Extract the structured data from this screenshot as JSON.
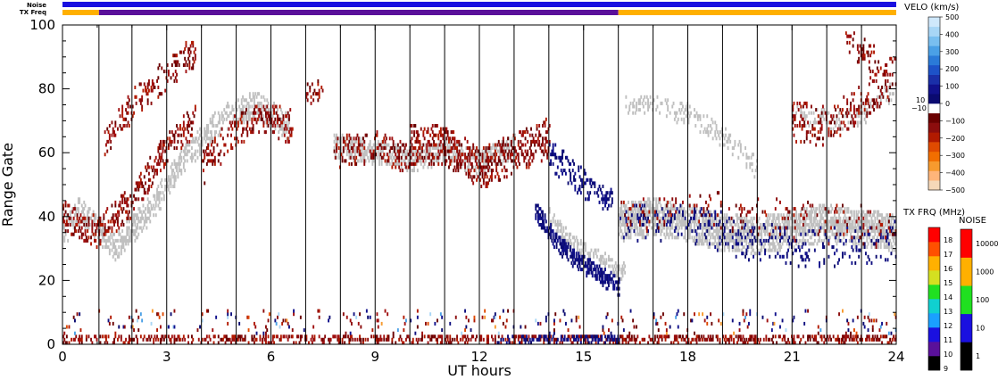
{
  "chart_data": {
    "type": "heatmap",
    "title": "",
    "xlabel": "UT hours",
    "ylabel": "Range Gate",
    "xlim": [
      0,
      24
    ],
    "ylim": [
      0,
      100
    ],
    "x_ticks": [
      0,
      3,
      6,
      9,
      12,
      15,
      18,
      21,
      24
    ],
    "y_ticks": [
      0,
      20,
      40,
      60,
      80,
      100
    ],
    "scan_boundaries_hours": [
      1.05,
      2.0,
      3.0,
      4.0,
      5.0,
      6.0,
      7.0,
      8.0,
      9.0,
      10.0,
      11.0,
      12.0,
      13.0,
      14.0,
      15.0,
      16.0,
      17.0,
      18.0,
      19.0,
      20.0,
      21.0,
      22.0,
      23.0
    ],
    "ground_scatter_color": "#c0c0c0",
    "status_bars": {
      "noise_label": "Noise",
      "txfreq_label": "TX Freq",
      "noise_segments": [
        {
          "start": 0,
          "end": 24,
          "level": "10",
          "color": "#1a10e0"
        }
      ],
      "txfreq_segments": [
        {
          "start": 0,
          "end": 1.05,
          "band": "15-16 MHz",
          "color": "#ffb000"
        },
        {
          "start": 1.05,
          "end": 16.0,
          "band": "10-11 MHz",
          "color": "#5a109a"
        },
        {
          "start": 16.0,
          "end": 24,
          "band": "15-16 MHz",
          "color": "#ffb000"
        }
      ]
    },
    "velocity_scale": {
      "title": "VELO (km/s)",
      "ticks": [
        "500",
        "400",
        "300",
        "200",
        "100",
        "0",
        "−100",
        "−200",
        "−300",
        "−400",
        "−500"
      ],
      "near_zero_labels": [
        "10",
        "−10"
      ],
      "colors": [
        "#f6d8b8",
        "#ffb57a",
        "#f79a2e",
        "#f26e00",
        "#e04a00",
        "#b21a00",
        "#8c0d0d",
        "#6a0000",
        "#ffffff",
        "#0a0a70",
        "#11118c",
        "#1a2fa8",
        "#1d52c8",
        "#2a7ad8",
        "#4aa0e6",
        "#79bff0",
        "#a8d6f6",
        "#cfe8fb"
      ]
    },
    "txfreq_scale": {
      "title": "TX FRQ (MHz)",
      "ticks": [
        "9",
        "10",
        "11",
        "12",
        "13",
        "14",
        "15",
        "16",
        "17",
        "18"
      ],
      "colors": [
        "#000000",
        "#5a109a",
        "#1a10e0",
        "#1aa0ff",
        "#10d0d0",
        "#20e020",
        "#d4e020",
        "#ffb000",
        "#ff5000",
        "#ff0000"
      ]
    },
    "noise_scale": {
      "title": "NOISE",
      "ticks": [
        "1",
        "10",
        "100",
        "1000",
        "10000"
      ],
      "colors": [
        "#000000",
        "#1a10e0",
        "#20e020",
        "#ffb000",
        "#ff0000"
      ]
    },
    "features": [
      {
        "name": "ground scatter band",
        "type": "band",
        "x": [
          0,
          0.5,
          1.5,
          2.5,
          3.5,
          4.5,
          5.5,
          6.5
        ],
        "y": [
          35,
          42,
          30,
          42,
          58,
          70,
          75,
          68
        ],
        "width": 8,
        "color": "ground",
        "density": 0.55
      },
      {
        "name": "ground scatter band",
        "type": "band",
        "x": [
          7.8,
          9.0,
          10.0,
          11.0,
          12.0,
          13.0
        ],
        "y": [
          62,
          60,
          58,
          60,
          57,
          62
        ],
        "width": 7,
        "color": "ground",
        "density": 0.6
      },
      {
        "name": "ground scatter band",
        "type": "band",
        "x": [
          16.0,
          17.0,
          18.0,
          19.0,
          20.0,
          21.0,
          22.0,
          23.0,
          24.0
        ],
        "y": [
          38,
          40,
          38,
          35,
          34,
          36,
          38,
          36,
          35
        ],
        "width": 11,
        "color": "ground",
        "density": 0.75
      },
      {
        "name": "ground scatter band",
        "type": "band",
        "x": [
          14.0,
          14.6,
          15.2,
          15.8,
          16.2
        ],
        "y": [
          40,
          32,
          27,
          24,
          22
        ],
        "width": 6,
        "color": "ground",
        "density": 0.5
      },
      {
        "name": "ground scatter band",
        "type": "band",
        "x": [
          16.2,
          17.0,
          18.0,
          19.0,
          20.0
        ],
        "y": [
          75,
          75,
          72,
          65,
          55
        ],
        "width": 6,
        "color": "ground",
        "density": 0.3
      },
      {
        "name": "ground scatter band",
        "type": "band",
        "x": [
          21.0,
          22.0,
          23.0,
          24.0
        ],
        "y": [
          72,
          70,
          72,
          80
        ],
        "width": 6,
        "color": "ground",
        "density": 0.3
      },
      {
        "name": "receding echoes",
        "type": "band",
        "x": [
          0,
          1.0,
          2.0,
          3.0,
          3.8
        ],
        "y": [
          40,
          35,
          45,
          62,
          70
        ],
        "width": 9,
        "color": "red",
        "density": 0.4
      },
      {
        "name": "receding echoes",
        "type": "band",
        "x": [
          1.2,
          2.0,
          3.0,
          3.8
        ],
        "y": [
          62,
          75,
          85,
          92
        ],
        "width": 9,
        "color": "red",
        "density": 0.28
      },
      {
        "name": "receding echoes",
        "type": "band",
        "x": [
          4.0,
          5.0,
          6.0,
          6.6
        ],
        "y": [
          55,
          68,
          70,
          68
        ],
        "width": 10,
        "color": "red",
        "density": 0.28
      },
      {
        "name": "receding echoes",
        "type": "band",
        "x": [
          7.0,
          7.5
        ],
        "y": [
          78,
          80
        ],
        "width": 6,
        "color": "red",
        "density": 0.4
      },
      {
        "name": "receding echoes",
        "type": "band",
        "x": [
          7.8,
          9.0,
          10.0
        ],
        "y": [
          60,
          62,
          58
        ],
        "width": 9,
        "color": "red",
        "density": 0.3
      },
      {
        "name": "receding echoes",
        "type": "band",
        "x": [
          10.0,
          11.0,
          12.0,
          13.0,
          14.0
        ],
        "y": [
          63,
          62,
          55,
          60,
          65
        ],
        "width": 12,
        "color": "red",
        "density": 0.4
      },
      {
        "name": "approaching echoes",
        "type": "band",
        "x": [
          13.6,
          14.2,
          14.8,
          15.4,
          16.0
        ],
        "y": [
          42,
          32,
          26,
          22,
          18
        ],
        "width": 5,
        "color": "blue",
        "density": 0.7
      },
      {
        "name": "approaching echoes",
        "type": "band",
        "x": [
          14.0,
          14.8,
          15.8
        ],
        "y": [
          60,
          52,
          45
        ],
        "width": 9,
        "color": "blue",
        "density": 0.3
      },
      {
        "name": "approaching echoes",
        "type": "band",
        "x": [
          16.0,
          18.0,
          20.0,
          22.0,
          24.0
        ],
        "y": [
          38,
          38,
          32,
          30,
          33
        ],
        "width": 12,
        "color": "blue",
        "density": 0.14
      },
      {
        "name": "receding echoes",
        "type": "band",
        "x": [
          16.0,
          18.0,
          20.0,
          22.0,
          24.0
        ],
        "y": [
          40,
          42,
          40,
          38,
          36
        ],
        "width": 12,
        "color": "red",
        "density": 0.08
      },
      {
        "name": "receding echoes",
        "type": "band",
        "x": [
          21.0,
          22.0,
          23.0,
          24.0
        ],
        "y": [
          70,
          68,
          75,
          85
        ],
        "width": 12,
        "color": "red",
        "density": 0.22
      },
      {
        "name": "receding echoes",
        "type": "band",
        "x": [
          22.5,
          23.5
        ],
        "y": [
          95,
          88
        ],
        "width": 8,
        "color": "red",
        "density": 0.25
      },
      {
        "name": "near-range echoes",
        "type": "band",
        "x": [
          0,
          6,
          12,
          18,
          24
        ],
        "y": [
          1.5,
          1.5,
          1.5,
          1.5,
          1.5
        ],
        "width": 3,
        "color": "red",
        "density": 0.45
      },
      {
        "name": "near-range echoes",
        "type": "band",
        "x": [
          12.5,
          16.0
        ],
        "y": [
          1.5,
          1.5
        ],
        "width": 3,
        "color": "blue",
        "density": 0.45
      },
      {
        "name": "near-range echoes",
        "type": "band",
        "x": [
          0,
          24
        ],
        "y": [
          7,
          7
        ],
        "width": 8,
        "color": "mixed",
        "density": 0.07
      }
    ]
  }
}
